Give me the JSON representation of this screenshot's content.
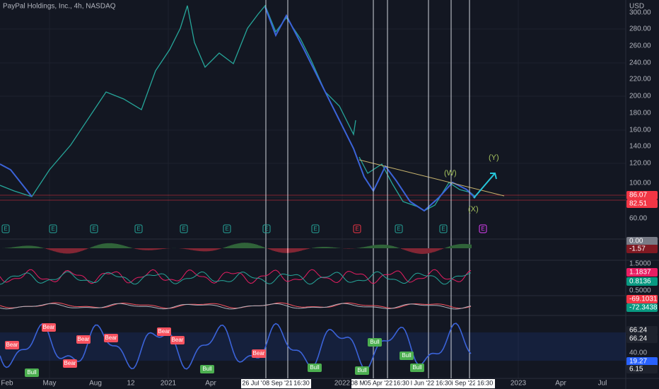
{
  "header": {
    "symbol": "PayPal Holdings, Inc., 4h, NASDAQ",
    "currency": "USD"
  },
  "price_axis": [
    "300.00",
    "280.00",
    "260.00",
    "240.00",
    "220.00",
    "200.00",
    "180.00",
    "160.00",
    "140.00",
    "120.00",
    "100.00",
    "60.00"
  ],
  "price_badges": [
    "86.07",
    "82.51"
  ],
  "indicator_axis": [
    "0.00",
    "-1.57",
    "1.5000",
    "1.1837",
    "0.8136",
    "0.5000",
    "-69.1031",
    "-72.3438",
    "66.24",
    "66.24",
    "40.00",
    "19.27",
    "6.15"
  ],
  "annotations": [
    "(W)",
    "(X)",
    "(Y)"
  ],
  "earnings": [
    "E",
    "E",
    "E",
    "E",
    "E",
    "E",
    "E",
    "E",
    "E",
    "E",
    "E",
    "E"
  ],
  "signals": [
    "Bear",
    "Bear",
    "Bear",
    "Bear",
    "Bear",
    "Bear",
    "Bear",
    "Bear",
    "Bull",
    "Bull",
    "Bull",
    "Bull",
    "Bull",
    "Bull",
    "Bull"
  ],
  "time_axis": {
    "plain": [
      "Feb",
      "May",
      "Aug",
      "12",
      "2021",
      "Apr",
      "2022",
      "2023",
      "Apr",
      "Jul"
    ],
    "crosshair": [
      "26 Jul '",
      "08 Sep '21",
      "16:30",
      "08 M",
      "05 Apr '22",
      "16:30",
      "l Jun '22",
      "16:30",
      "i Sep '22",
      "16:30"
    ]
  }
}
